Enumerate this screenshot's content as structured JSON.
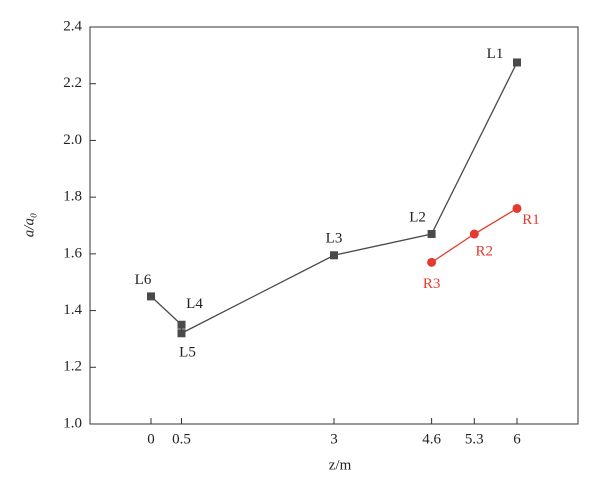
{
  "chart_data": {
    "type": "line",
    "x_label": "z/m",
    "y_label": "a/a₀",
    "xlim": [
      -1,
      7
    ],
    "xticks": [
      0,
      0.5,
      3,
      4.6,
      5.3,
      6
    ],
    "ylim": [
      1.0,
      2.4
    ],
    "yticks": [
      {
        "value": 1.0,
        "label": "1.0"
      },
      {
        "value": 1.2,
        "label": "1.2"
      },
      {
        "value": 1.4,
        "label": "1.4"
      },
      {
        "value": 1.6,
        "label": "1.6"
      },
      {
        "value": 1.8,
        "label": "1.8"
      },
      {
        "value": 2.0,
        "label": "2.0"
      },
      {
        "value": 2.2,
        "label": "2.2"
      },
      {
        "value": 2.4,
        "label": "2.4"
      }
    ],
    "series": [
      {
        "color": "#4a4a4a",
        "marker": "square",
        "x": [
          0,
          0.5,
          0.5,
          3,
          4.6,
          6
        ],
        "values": [
          1.45,
          1.35,
          1.32,
          1.595,
          1.67,
          2.275
        ],
        "labels": [
          "L6",
          "L4",
          "L5",
          "L3",
          "L2",
          "L1"
        ]
      },
      {
        "color": "#e53a30",
        "marker": "circle",
        "x": [
          4.6,
          5.3,
          6
        ],
        "values": [
          1.57,
          1.67,
          1.76
        ],
        "labels": [
          "R3",
          "R2",
          "R1"
        ]
      }
    ]
  }
}
